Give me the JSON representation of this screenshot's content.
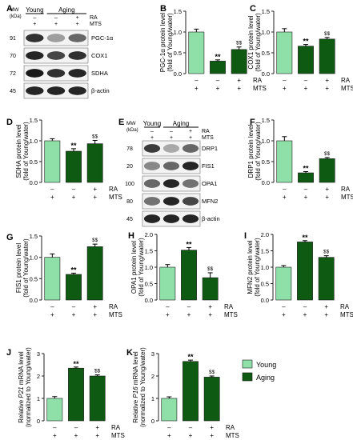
{
  "colors": {
    "young": "#8fe0a8",
    "aging": "#0e5a12",
    "axis": "#222222",
    "blot_bg": "#f3f3f3"
  },
  "treatment_labels": {
    "ra": "RA",
    "mts": "MTS"
  },
  "conditions": [
    {
      "ra": "–",
      "mts": "+"
    },
    {
      "ra": "–",
      "mts": "+"
    },
    {
      "ra": "+",
      "mts": "+"
    }
  ],
  "legend": {
    "young": "Young",
    "aging": "Aging"
  },
  "blots": [
    {
      "letter": "A",
      "mw_header": "MW\n(kDa)",
      "groups": [
        "Young",
        "Aging"
      ],
      "treat_rows": [
        {
          "label": "RA",
          "marks": [
            "–",
            "–",
            "+"
          ]
        },
        {
          "label": "MTS",
          "marks": [
            "+",
            "+",
            "+"
          ]
        }
      ],
      "bands": [
        {
          "mw": "91",
          "name": "PGC-1α"
        },
        {
          "mw": "70",
          "name": "COX1"
        },
        {
          "mw": "72",
          "name": "SDHA"
        },
        {
          "mw": "45",
          "name": "β-actin"
        }
      ]
    },
    {
      "letter": "E",
      "mw_header": "MW\n(kDa)",
      "groups": [
        "Young",
        "Aging"
      ],
      "treat_rows": [
        {
          "label": "RA",
          "marks": [
            "–",
            "–",
            "+"
          ]
        },
        {
          "label": "MTS",
          "marks": [
            "+",
            "+",
            "+"
          ]
        }
      ],
      "bands": [
        {
          "mw": "78",
          "name": "DRP1"
        },
        {
          "mw": "20",
          "name": "FIS1"
        },
        {
          "mw": "100",
          "name": "OPA1"
        },
        {
          "mw": "80",
          "name": "MFN2"
        },
        {
          "mw": "45",
          "name": "β-actin"
        }
      ]
    }
  ],
  "chart_data": [
    {
      "letter": "B",
      "type": "bar",
      "ylabel": [
        "PGC-1α protein level",
        "(fold of Young/water)"
      ],
      "ylim": [
        0,
        1.5
      ],
      "ticks": [
        "0.0",
        "0.5",
        "1.0",
        "1.5"
      ],
      "categories": [
        "Young",
        "Aging",
        "Aging + RA"
      ],
      "values": [
        1.0,
        0.3,
        0.58
      ],
      "errors": [
        0.07,
        0.03,
        0.06
      ],
      "annotations": [
        "",
        "**",
        "$$"
      ]
    },
    {
      "letter": "C",
      "type": "bar",
      "ylabel": [
        "COX1 protein level",
        "(fold of Young/water)"
      ],
      "ylim": [
        0,
        1.5
      ],
      "ticks": [
        "0.0",
        "0.5",
        "1.0",
        "1.5"
      ],
      "categories": [
        "Young",
        "Aging",
        "Aging + RA"
      ],
      "values": [
        1.0,
        0.66,
        0.83
      ],
      "errors": [
        0.08,
        0.04,
        0.04
      ],
      "annotations": [
        "",
        "**",
        "$$"
      ]
    },
    {
      "letter": "D",
      "type": "bar",
      "ylabel": [
        "SDHA protein level",
        "(fold of Young/water)"
      ],
      "ylim": [
        0,
        1.5
      ],
      "ticks": [
        "0.0",
        "0.5",
        "1.0",
        "1.5"
      ],
      "categories": [
        "Young",
        "Aging",
        "Aging + RA"
      ],
      "values": [
        1.0,
        0.75,
        0.93
      ],
      "errors": [
        0.05,
        0.06,
        0.08
      ],
      "annotations": [
        "",
        "**",
        "$$"
      ]
    },
    {
      "letter": "F",
      "type": "bar",
      "ylabel": [
        "DRP1 protein level",
        "(fold of Young/water)"
      ],
      "ylim": [
        0,
        1.5
      ],
      "ticks": [
        "0.0",
        "0.5",
        "1.0",
        "1.5"
      ],
      "categories": [
        "Young",
        "Aging",
        "Aging + RA"
      ],
      "values": [
        1.0,
        0.23,
        0.57
      ],
      "errors": [
        0.1,
        0.03,
        0.03
      ],
      "annotations": [
        "",
        "**",
        "$$"
      ]
    },
    {
      "letter": "G",
      "type": "bar",
      "ylabel": [
        "FIS1 protein level",
        "(fold of Young/water)"
      ],
      "ylim": [
        0,
        1.5
      ],
      "ticks": [
        "0.0",
        "0.5",
        "1.0",
        "1.5"
      ],
      "categories": [
        "Young",
        "Aging",
        "Aging + RA"
      ],
      "values": [
        1.0,
        0.6,
        1.25
      ],
      "errors": [
        0.08,
        0.03,
        0.06
      ],
      "annotations": [
        "",
        "**",
        "$$"
      ]
    },
    {
      "letter": "H",
      "type": "bar",
      "ylabel": [
        "OPA1 protein level",
        "(fold of Young/water)"
      ],
      "ylim": [
        0,
        2.0
      ],
      "ticks": [
        "0.0",
        "0.5",
        "1.0",
        "1.5",
        "2.0"
      ],
      "categories": [
        "Young",
        "Aging",
        "Aging + RA"
      ],
      "values": [
        1.0,
        1.52,
        0.68
      ],
      "errors": [
        0.08,
        0.08,
        0.15
      ],
      "annotations": [
        "",
        "**",
        "$$"
      ]
    },
    {
      "letter": "I",
      "type": "bar",
      "ylabel": [
        "MFN2 protein level",
        "(fold of Young/water)"
      ],
      "ylim": [
        0,
        2.0
      ],
      "ticks": [
        "0.0",
        "0.5",
        "1.0",
        "1.5",
        "2.0"
      ],
      "categories": [
        "Young",
        "Aging",
        "Aging + RA"
      ],
      "values": [
        1.0,
        1.77,
        1.3
      ],
      "errors": [
        0.05,
        0.04,
        0.05
      ],
      "annotations": [
        "",
        "**",
        "$$"
      ]
    },
    {
      "letter": "J",
      "type": "bar",
      "ylabel": [
        "Relative P21 mRNA level",
        "(normalized to Young/water)"
      ],
      "ylabel_italic": "P21",
      "ylim": [
        0,
        3
      ],
      "ticks": [
        "0",
        "1",
        "2",
        "3"
      ],
      "categories": [
        "Young",
        "Aging",
        "Aging + RA"
      ],
      "values": [
        1.0,
        2.35,
        2.0
      ],
      "errors": [
        0.08,
        0.05,
        0.05
      ],
      "annotations": [
        "",
        "**",
        "$$"
      ]
    },
    {
      "letter": "K",
      "type": "bar",
      "ylabel": [
        "Relative P16 mRNA level",
        "(normalized to Young/water)"
      ],
      "ylabel_italic": "P16",
      "ylim": [
        0,
        3
      ],
      "ticks": [
        "0",
        "1",
        "2",
        "3"
      ],
      "categories": [
        "Young",
        "Aging",
        "Aging + RA"
      ],
      "values": [
        1.0,
        2.65,
        1.95
      ],
      "errors": [
        0.07,
        0.06,
        0.05
      ],
      "annotations": [
        "",
        "**",
        "$$"
      ]
    }
  ]
}
